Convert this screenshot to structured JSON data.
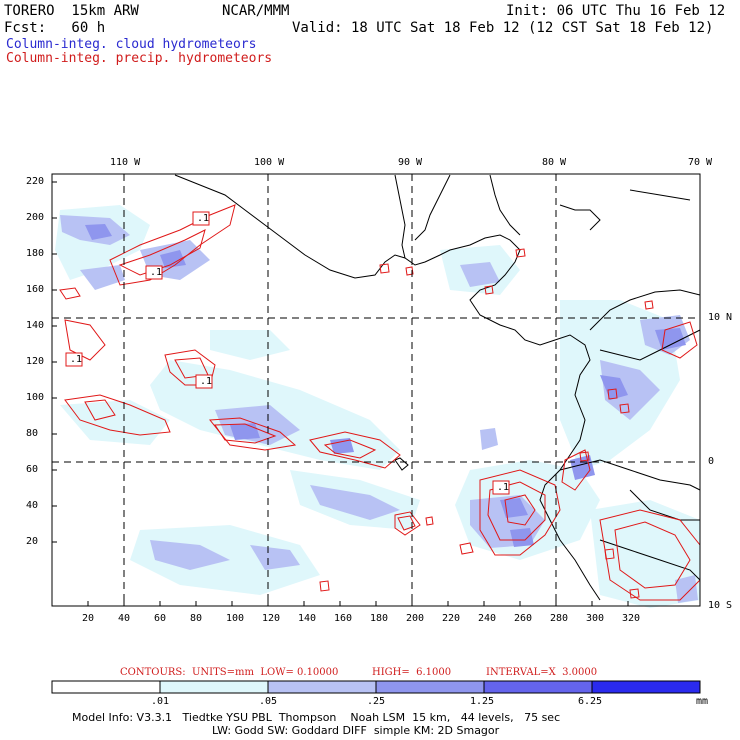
{
  "header": {
    "model": "TORERO  15km ARW",
    "org": "NCAR/MMM",
    "init": "Init: 06 UTC Thu 16 Feb 12",
    "fcst": "Fcst:   60 h",
    "valid": "Valid: 18 UTC Sat 18 Feb 12 (12 CST Sat 18 Feb 12)",
    "field_cloud": "Column-integ. cloud hydrometeors",
    "field_precip": "Column-integ. precip. hydrometeors"
  },
  "colors": {
    "cloud_text": "#2a2ad0",
    "precip_text": "#d01c1c",
    "contour": "#e01818",
    "coast": "#000000",
    "shade_1": "#dff7fb",
    "shade_2": "#b8c2f4",
    "shade_3": "#8f96ee",
    "shade_4": "#6464ec",
    "shade_5": "#2a2aee"
  },
  "map": {
    "top_lon_labels": [
      "110 W",
      "100 W",
      "90 W",
      "80 W",
      "70 W"
    ],
    "right_lat_labels": [
      "10 N",
      "0",
      "10 S"
    ],
    "left_y_ticks": [
      "220",
      "200",
      "180",
      "160",
      "140",
      "120",
      "100",
      "80",
      "60",
      "40",
      "20"
    ],
    "bottom_x_ticks": [
      "20",
      "40",
      "60",
      "80",
      "100",
      "120",
      "140",
      "160",
      "180",
      "200",
      "220",
      "240",
      "260",
      "280",
      "300",
      "320"
    ],
    "contour_labels": [
      ".1",
      ".1",
      ".1",
      ".1",
      ".1"
    ]
  },
  "contour_info": {
    "units": "CONTOURS:  UNITS=mm  LOW= 0.10000",
    "high": "HIGH=  6.1000",
    "interval": "INTERVAL=X  3.0000"
  },
  "legend": {
    "boundaries": [
      ".01",
      ".05",
      ".25",
      "1.25",
      "6.25"
    ],
    "unit": "mm"
  },
  "model_info": {
    "line1": "Model Info: V3.3.1   Tiedtke YSU PBL  Thompson    Noah LSM  15 km,   44 levels,   75 sec",
    "line2": "LW: Godd SW: Goddard DIFF  simple KM: 2D Smagor"
  }
}
